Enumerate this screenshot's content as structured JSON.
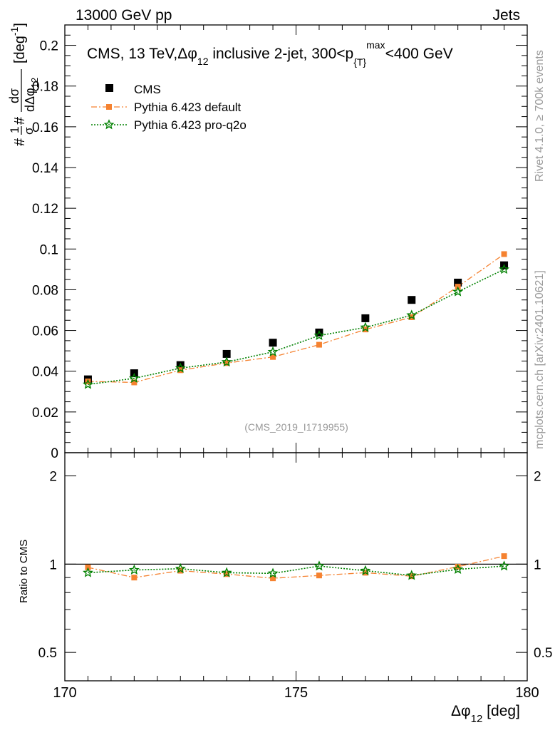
{
  "header": {
    "left": "13000 GeV pp",
    "right": "Jets"
  },
  "side": {
    "rivet": "Rivet 4.1.0, ≥ 700k events",
    "mcplots": "mcplots.cern.ch [arXiv:2401.10621]"
  },
  "chart_data": {
    "type": "scatter",
    "title": "CMS, 13 TeV,Δφ_12 inclusive 2-jet, 300<p_{T}^max<400 GeV",
    "title_parts": {
      "a": "CMS, 13 TeV,",
      "dphi": "Δφ",
      "sub12": "12",
      "b": " inclusive 2-jet, 300<p",
      "subT": "{T}",
      "supmax": "max",
      "c": "<400 GeV"
    },
    "watermark": "(CMS_2019_I1719955)",
    "ylabel_parts": {
      "pre": "#",
      "frac1num": "1",
      "frac1den": "σ",
      "mid": "#",
      "frac2num": "dσ",
      "frac2den": "dΔφ",
      "frac2densub": "12",
      "unit": "[deg",
      "unitsup": "-1",
      "unitend": "]"
    },
    "xlabel_parts": {
      "dphi": "Δφ",
      "sub": "12",
      "unit": " [deg]"
    },
    "ratio_ylabel": "Ratio to CMS",
    "xlim": [
      170,
      180
    ],
    "ylim": [
      0,
      0.21
    ],
    "ratio_ylim": [
      0.4,
      2.4
    ],
    "x_ticks": [
      "170",
      "175",
      "180"
    ],
    "y_ticks": [
      "0",
      "0.02",
      "0.04",
      "0.06",
      "0.08",
      "0.1",
      "0.12",
      "0.14",
      "0.16",
      "0.18",
      "0.2"
    ],
    "ratio_ticks": [
      "0.5",
      "1",
      "2"
    ],
    "x": [
      170.5,
      171.5,
      172.5,
      173.5,
      174.5,
      175.5,
      176.5,
      177.5,
      178.5,
      179.5
    ],
    "legend_position": "top-left",
    "series": [
      {
        "name": "CMS",
        "color": "#000000",
        "marker": "square",
        "values": [
          0.036,
          0.039,
          0.043,
          0.0485,
          0.054,
          0.059,
          0.066,
          0.075,
          0.0835,
          0.092
        ]
      },
      {
        "name": "Pythia 6.423 default",
        "color": "#f58230",
        "marker": "circle",
        "line": "dashdot",
        "values": [
          0.035,
          0.0345,
          0.0405,
          0.044,
          0.047,
          0.053,
          0.0605,
          0.0665,
          0.0815,
          0.0975
        ]
      },
      {
        "name": "Pythia 6.423 pro-q2o",
        "color": "#008000",
        "marker": "star",
        "line": "dotted",
        "values": [
          0.0335,
          0.0365,
          0.0415,
          0.0445,
          0.0495,
          0.0575,
          0.0615,
          0.0675,
          0.079,
          0.09
        ]
      }
    ],
    "ratio_series": [
      {
        "name": "Pythia 6.423 default",
        "color": "#f58230",
        "values": [
          0.975,
          0.9,
          0.95,
          0.925,
          0.895,
          0.915,
          0.935,
          0.91,
          0.98,
          1.065
        ]
      },
      {
        "name": "Pythia 6.423 pro-q2o",
        "color": "#008000",
        "values": [
          0.935,
          0.955,
          0.965,
          0.935,
          0.93,
          0.985,
          0.95,
          0.915,
          0.96,
          0.985
        ]
      }
    ]
  }
}
